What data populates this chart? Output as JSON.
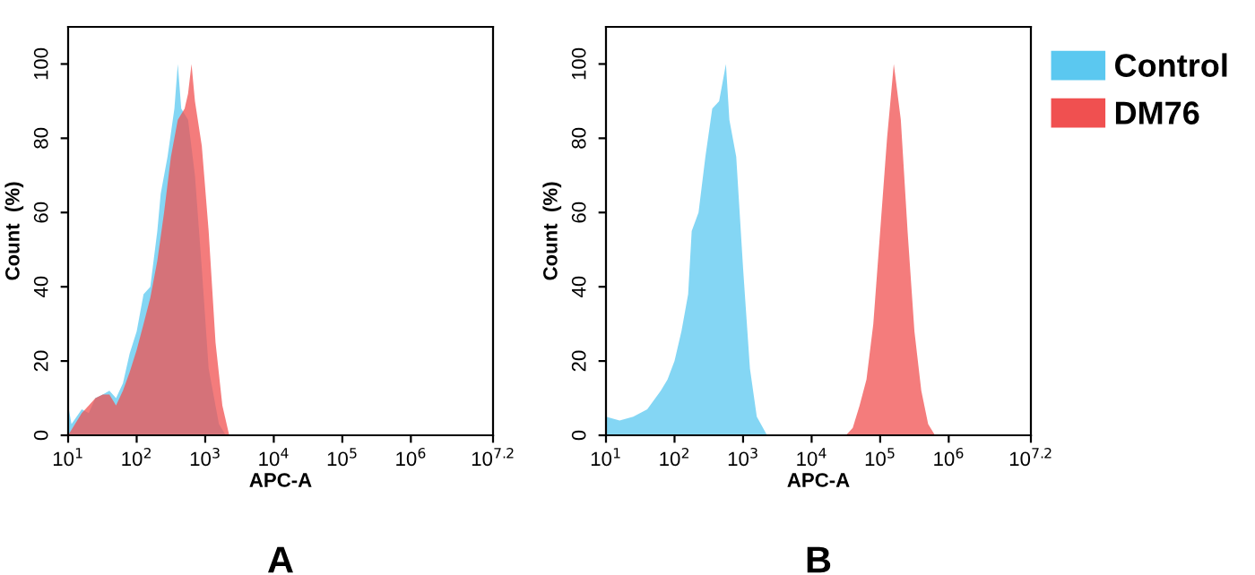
{
  "chart_data": [
    {
      "type": "area",
      "xlabel": "APC-A",
      "ylabel": "Count  (%)",
      "log": "x",
      "annotations": [
        "A"
      ],
      "xlim": [
        10,
        15800000
      ],
      "ylim": [
        0,
        110
      ],
      "yticks": [
        0,
        20,
        40,
        60,
        80,
        100
      ],
      "xticks": [
        {
          "value": 10,
          "label": "10$^{1}$"
        },
        {
          "value": 100,
          "label": "10$^{2}$"
        },
        {
          "value": 1000,
          "label": "10$^{3}$"
        },
        {
          "value": 10000,
          "label": "10$^{4}$"
        },
        {
          "value": 100000,
          "label": "10$^{5}$"
        },
        {
          "value": 1000000,
          "label": "10$^{6}$"
        },
        {
          "value": 15800000,
          "label": "10$^{7.2}$"
        }
      ],
      "grid": false,
      "legend": false,
      "series": [
        {
          "color": "#5bc8f0",
          "x": [
            10,
            11.2,
            15.8,
            20,
            25,
            32,
            40,
            50,
            63,
            79,
            100,
            126,
            158,
            200,
            224,
            282,
            355,
            398,
            447,
            562,
            708,
            891,
            1122,
            1585,
            1995
          ],
          "values": [
            8,
            3,
            7,
            6,
            10,
            11,
            12,
            10,
            14,
            22,
            28,
            38,
            40,
            55,
            65,
            75,
            88,
            100,
            88,
            85,
            70,
            45,
            18,
            3,
            0
          ]
        },
        {
          "color": "#f05050",
          "x": [
            10,
            12.6,
            15.8,
            20,
            25,
            32,
            40,
            50,
            63,
            79,
            100,
            126,
            158,
            200,
            251,
            316,
            398,
            501,
            562,
            631,
            708,
            891,
            1122,
            1413,
            1778,
            2239
          ],
          "values": [
            0,
            3,
            6,
            8,
            10,
            11,
            11,
            8,
            12,
            17,
            23,
            30,
            37,
            47,
            60,
            75,
            85,
            88,
            92,
            100,
            90,
            78,
            55,
            25,
            8,
            0
          ]
        }
      ]
    },
    {
      "type": "area",
      "xlabel": "APC-A",
      "ylabel": "Count  (%)",
      "log": "x",
      "annotations": [
        "B"
      ],
      "xlim": [
        10,
        15800000
      ],
      "ylim": [
        0,
        110
      ],
      "yticks": [
        0,
        20,
        40,
        60,
        80,
        100
      ],
      "xticks": [
        {
          "value": 10,
          "label": "10$^{1}$"
        },
        {
          "value": 100,
          "label": "10$^{2}$"
        },
        {
          "value": 1000,
          "label": "10$^{3}$"
        },
        {
          "value": 10000,
          "label": "10$^{4}$"
        },
        {
          "value": 100000,
          "label": "10$^{5}$"
        },
        {
          "value": 1000000,
          "label": "10$^{6}$"
        },
        {
          "value": 15800000,
          "label": "10$^{7.2}$"
        }
      ],
      "grid": false,
      "legend": "right",
      "series": [
        {
          "name": "Control",
          "color": "#5bc8f0",
          "x": [
            10,
            15.8,
            25,
            40,
            63,
            79,
            100,
            126,
            158,
            178,
            224,
            282,
            355,
            447,
            562,
            631,
            794,
            1000,
            1259,
            1585,
            2239
          ],
          "values": [
            5,
            4,
            5,
            7,
            12,
            15,
            20,
            28,
            38,
            55,
            60,
            75,
            88,
            90,
            100,
            85,
            75,
            45,
            18,
            5,
            0
          ]
        },
        {
          "name": "DM76",
          "color": "#f05050",
          "x": [
            31600,
            39800,
            50100,
            63100,
            79400,
            100000,
            126000,
            158000,
            200000,
            251000,
            316000,
            398000,
            501000,
            631000
          ],
          "values": [
            0,
            2,
            8,
            15,
            30,
            55,
            80,
            100,
            85,
            55,
            28,
            12,
            3,
            0
          ]
        }
      ]
    }
  ]
}
